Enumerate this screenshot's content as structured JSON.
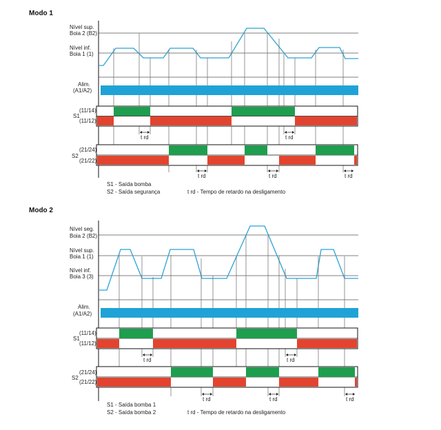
{
  "colors": {
    "level": "#2aa2d6",
    "power": "#1fa3d6",
    "on": "#1e9e4e",
    "off": "#e2442f",
    "frame": "#111111",
    "grid": "#555555",
    "vline": "#666666"
  },
  "modo1": {
    "title": "Modo 1",
    "levels": [
      {
        "line1": "Nível sup.",
        "line2": "Boia 2 (B2)"
      },
      {
        "line1": "Nível inf.",
        "line2": "Boia 1 (1)"
      }
    ],
    "alim": {
      "line1": "Alim.",
      "line2": "(A1/A2)"
    },
    "s1": {
      "name": "S1",
      "top": "(11/14)",
      "bottom": "(11/12)"
    },
    "s2": {
      "name": "S2",
      "top": "(21/24)",
      "bottom": "(21/22)"
    },
    "delay": "t rd",
    "legend": {
      "s1": "S1 - Saída bomba",
      "s2": "S2 - Saída segurança",
      "trd": "t rd - Tempo de retardo na desligamento"
    }
  },
  "modo2": {
    "title": "Modo 2",
    "levels": [
      {
        "line1": "Nível seg.",
        "line2": "Boia 2 (B2)"
      },
      {
        "line1": "Nível sup.",
        "line2": "Boia 1 (1)"
      },
      {
        "line1": "Nível inf.",
        "line2": "Boia 3 (3)"
      }
    ],
    "alim": {
      "line1": "Alim.",
      "line2": "(A1/A2)"
    },
    "s1": {
      "name": "S1",
      "top": "(11/14)",
      "bottom": "(11/12)"
    },
    "s2": {
      "name": "S2",
      "top": "(21/24)",
      "bottom": "(21/22)"
    },
    "delay": "t rd",
    "legend": {
      "s1": "S1 - Saída bomba 1",
      "s2": "S2 - Saída bomba 2",
      "trd": "t rd - Tempo de retardo na desligamento"
    }
  }
}
